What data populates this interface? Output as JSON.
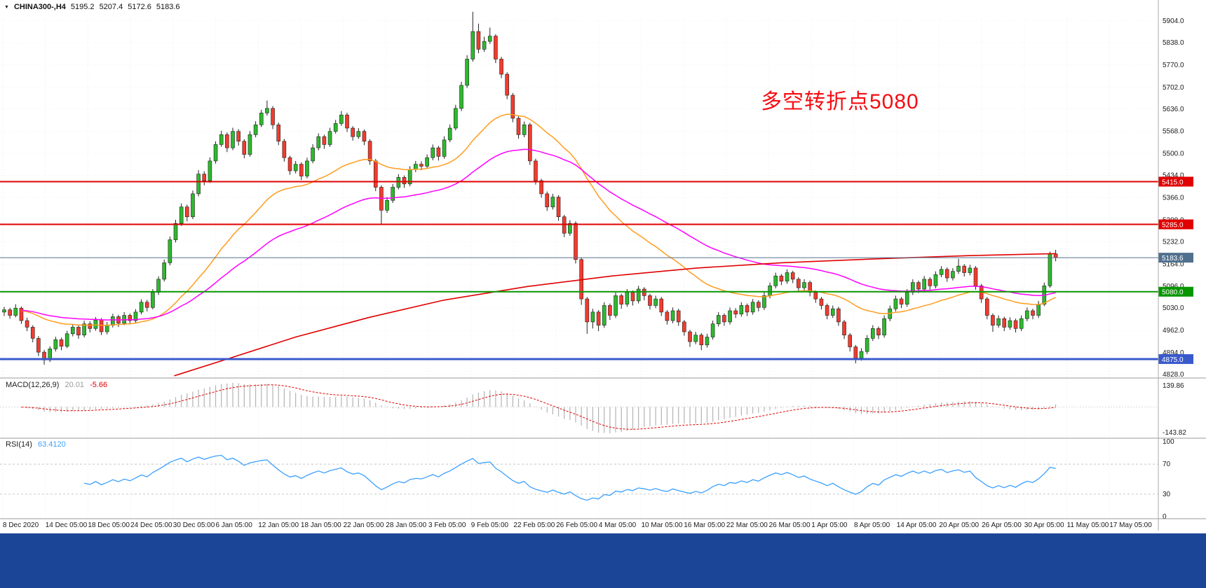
{
  "symbol_bar": {
    "marker": "▼",
    "symbol": "CHINA300-,H4",
    "open": "5195.2",
    "high": "5207.4",
    "low": "5172.6",
    "close": "5183.6"
  },
  "annotation": {
    "text": "多空转折点5080",
    "color": "#f50d12"
  },
  "indicators": {
    "macd": {
      "title": "MACD(12,26,9)",
      "main_value": "20.01",
      "signal_value": "-5.66",
      "axis_top": "139.86",
      "axis_bottom": "-143.82",
      "histogram_color": "#b3b3b3",
      "signal_color": "#e00000",
      "main_value_color": "#999999"
    },
    "rsi": {
      "title": "RSI(14)",
      "value": "63.4120",
      "line_color": "#3aa0ff",
      "guide_levels": [
        70,
        30
      ],
      "axis_labels": [
        100,
        70,
        30,
        0
      ]
    }
  },
  "taskbar": {
    "color": "#1b4596"
  },
  "chart_data": {
    "type": "candlestick",
    "symbol": "CHINA300-",
    "timeframe": "H4",
    "title": "CHINA300- H4 candlestick chart with MACD(12,26,9) and RSI(14)",
    "y_range": [
      4828,
      5904
    ],
    "y_ticks": [
      5904,
      5838,
      5770,
      5702,
      5636,
      5568,
      5500,
      5434,
      5366,
      5298,
      5232,
      5164,
      5096,
      5030,
      4962,
      4894,
      4828
    ],
    "time_labels": [
      "8 Dec 2020",
      "14 Dec 05:00",
      "18 Dec 05:00",
      "24 Dec 05:00",
      "30 Dec 05:00",
      "6 Jan 05:00",
      "12 Jan 05:00",
      "18 Jan 05:00",
      "22 Jan 05:00",
      "28 Jan 05:00",
      "3 Feb 05:00",
      "9 Feb 05:00",
      "22 Feb 05:00",
      "26 Feb 05:00",
      "4 Mar 05:00",
      "10 Mar 05:00",
      "16 Mar 05:00",
      "22 Mar 05:00",
      "26 Mar 05:00",
      "1 Apr 05:00",
      "8 Apr 05:00",
      "14 Apr 05:00",
      "20 Apr 05:00",
      "26 Apr 05:00",
      "30 Apr 05:00",
      "11 May 05:00",
      "17 May 05:00"
    ],
    "colors": {
      "up": "#2db92d",
      "down": "#f23b2e",
      "outline": "#222222"
    },
    "levels": [
      {
        "name": "resistance-line-5415",
        "price": 5415.0,
        "label": "5415.0",
        "color": "#e00000",
        "width": 2
      },
      {
        "name": "resistance-line-5285",
        "price": 5285.0,
        "label": "5285.0",
        "color": "#e00000",
        "width": 2
      },
      {
        "name": "pivot-line-5080",
        "price": 5080.0,
        "label": "5080.0",
        "color": "#089600",
        "width": 2
      },
      {
        "name": "support-line-4875",
        "price": 4875.0,
        "label": "4875.0",
        "color": "#3a5acc",
        "width": 3
      },
      {
        "name": "current-price-line",
        "price": 5183.6,
        "label": "5183.6",
        "color": "#50708e",
        "width": 1
      }
    ],
    "moving_averages": {
      "fast": {
        "type": "ema",
        "period": 30,
        "color": "#ff9c1e"
      },
      "mid": {
        "type": "ema",
        "period": 60,
        "color": "#ff00ff"
      },
      "slow": {
        "type": "polyline",
        "color": "#e00000",
        "points": [
          [
            0.165,
            4824
          ],
          [
            0.22,
            4880
          ],
          [
            0.28,
            4942
          ],
          [
            0.35,
            5002
          ],
          [
            0.42,
            5054
          ],
          [
            0.5,
            5096
          ],
          [
            0.58,
            5128
          ],
          [
            0.66,
            5152
          ],
          [
            0.74,
            5168
          ],
          [
            0.83,
            5180
          ],
          [
            0.92,
            5190
          ],
          [
            1.0,
            5196
          ]
        ]
      }
    },
    "macd_params": [
      12,
      26,
      9
    ],
    "rsi_period": 14,
    "ohlc": [
      [
        5018,
        5034,
        5006,
        5025
      ],
      [
        5025,
        5031,
        4998,
        5008
      ],
      [
        5008,
        5042,
        5002,
        5030
      ],
      [
        5030,
        5035,
        4982,
        4992
      ],
      [
        4992,
        5001,
        4960,
        4972
      ],
      [
        4972,
        4978,
        4926,
        4938
      ],
      [
        4938,
        4945,
        4884,
        4896
      ],
      [
        4896,
        4903,
        4858,
        4872
      ],
      [
        4872,
        4914,
        4866,
        4906
      ],
      [
        4906,
        4943,
        4898,
        4934
      ],
      [
        4934,
        4940,
        4902,
        4914
      ],
      [
        4914,
        4961,
        4908,
        4952
      ],
      [
        4952,
        4981,
        4944,
        4972
      ],
      [
        4972,
        4979,
        4937,
        4948
      ],
      [
        4948,
        4992,
        4941,
        4982
      ],
      [
        4982,
        4990,
        4956,
        4968
      ],
      [
        4968,
        5003,
        4961,
        4994
      ],
      [
        4994,
        5000,
        4948,
        4958
      ],
      [
        4958,
        4988,
        4950,
        4978
      ],
      [
        4978,
        5013,
        4971,
        5004
      ],
      [
        5004,
        5010,
        4973,
        4984
      ],
      [
        4984,
        5018,
        4978,
        5008
      ],
      [
        5008,
        5014,
        4981,
        4992
      ],
      [
        4992,
        5027,
        4986,
        5018
      ],
      [
        5018,
        5057,
        5011,
        5048
      ],
      [
        5048,
        5055,
        5020,
        5032
      ],
      [
        5032,
        5088,
        5026,
        5078
      ],
      [
        5078,
        5127,
        5070,
        5118
      ],
      [
        5118,
        5178,
        5111,
        5168
      ],
      [
        5168,
        5248,
        5160,
        5238
      ],
      [
        5238,
        5299,
        5230,
        5288
      ],
      [
        5288,
        5349,
        5280,
        5338
      ],
      [
        5338,
        5345,
        5294,
        5308
      ],
      [
        5308,
        5388,
        5301,
        5378
      ],
      [
        5378,
        5450,
        5370,
        5438
      ],
      [
        5438,
        5447,
        5404,
        5418
      ],
      [
        5418,
        5489,
        5411,
        5478
      ],
      [
        5478,
        5538,
        5470,
        5528
      ],
      [
        5528,
        5570,
        5521,
        5558
      ],
      [
        5558,
        5565,
        5505,
        5518
      ],
      [
        5518,
        5579,
        5511,
        5568
      ],
      [
        5568,
        5575,
        5525,
        5538
      ],
      [
        5538,
        5544,
        5486,
        5498
      ],
      [
        5498,
        5569,
        5491,
        5558
      ],
      [
        5558,
        5599,
        5550,
        5588
      ],
      [
        5588,
        5634,
        5581,
        5624
      ],
      [
        5624,
        5662,
        5616,
        5638
      ],
      [
        5638,
        5645,
        5575,
        5588
      ],
      [
        5588,
        5595,
        5526,
        5538
      ],
      [
        5538,
        5545,
        5476,
        5488
      ],
      [
        5488,
        5494,
        5436,
        5448
      ],
      [
        5448,
        5478,
        5440,
        5468
      ],
      [
        5468,
        5474,
        5420,
        5432
      ],
      [
        5432,
        5488,
        5425,
        5478
      ],
      [
        5478,
        5529,
        5471,
        5518
      ],
      [
        5518,
        5562,
        5510,
        5552
      ],
      [
        5552,
        5558,
        5515,
        5528
      ],
      [
        5528,
        5579,
        5521,
        5568
      ],
      [
        5568,
        5603,
        5561,
        5592
      ],
      [
        5592,
        5630,
        5585,
        5618
      ],
      [
        5618,
        5625,
        5566,
        5578
      ],
      [
        5578,
        5584,
        5540,
        5552
      ],
      [
        5552,
        5578,
        5545,
        5568
      ],
      [
        5568,
        5574,
        5526,
        5538
      ],
      [
        5538,
        5544,
        5466,
        5478
      ],
      [
        5478,
        5484,
        5386,
        5398
      ],
      [
        5398,
        5404,
        5286,
        5328
      ],
      [
        5328,
        5368,
        5320,
        5358
      ],
      [
        5358,
        5408,
        5350,
        5398
      ],
      [
        5398,
        5438,
        5391,
        5428
      ],
      [
        5428,
        5434,
        5396,
        5408
      ],
      [
        5408,
        5462,
        5401,
        5452
      ],
      [
        5452,
        5478,
        5444,
        5468
      ],
      [
        5468,
        5477,
        5450,
        5462
      ],
      [
        5462,
        5498,
        5455,
        5488
      ],
      [
        5488,
        5528,
        5480,
        5518
      ],
      [
        5518,
        5524,
        5479,
        5492
      ],
      [
        5492,
        5553,
        5485,
        5542
      ],
      [
        5542,
        5589,
        5535,
        5578
      ],
      [
        5578,
        5649,
        5571,
        5638
      ],
      [
        5638,
        5719,
        5630,
        5708
      ],
      [
        5708,
        5800,
        5700,
        5788
      ],
      [
        5788,
        5932,
        5780,
        5872
      ],
      [
        5872,
        5896,
        5806,
        5818
      ],
      [
        5818,
        5856,
        5810,
        5842
      ],
      [
        5842,
        5884,
        5834,
        5858
      ],
      [
        5858,
        5864,
        5776,
        5788
      ],
      [
        5788,
        5795,
        5730,
        5742
      ],
      [
        5742,
        5748,
        5666,
        5678
      ],
      [
        5678,
        5685,
        5596,
        5608
      ],
      [
        5608,
        5615,
        5546,
        5558
      ],
      [
        5558,
        5598,
        5550,
        5588
      ],
      [
        5588,
        5594,
        5466,
        5478
      ],
      [
        5478,
        5485,
        5406,
        5418
      ],
      [
        5418,
        5424,
        5366,
        5378
      ],
      [
        5378,
        5385,
        5326,
        5338
      ],
      [
        5338,
        5378,
        5330,
        5368
      ],
      [
        5368,
        5374,
        5296,
        5308
      ],
      [
        5308,
        5314,
        5246,
        5258
      ],
      [
        5258,
        5298,
        5250,
        5288
      ],
      [
        5288,
        5294,
        5166,
        5178
      ],
      [
        5178,
        5184,
        5040,
        5058
      ],
      [
        5058,
        5064,
        4952,
        4988
      ],
      [
        4988,
        5028,
        4968,
        5018
      ],
      [
        5018,
        5024,
        4960,
        4978
      ],
      [
        4978,
        5048,
        4970,
        5038
      ],
      [
        5038,
        5044,
        4994,
        5008
      ],
      [
        5008,
        5078,
        5000,
        5068
      ],
      [
        5068,
        5074,
        5028,
        5042
      ],
      [
        5042,
        5088,
        5034,
        5078
      ],
      [
        5078,
        5084,
        5038,
        5052
      ],
      [
        5052,
        5098,
        5044,
        5088
      ],
      [
        5088,
        5094,
        5054,
        5068
      ],
      [
        5068,
        5074,
        5026,
        5038
      ],
      [
        5038,
        5068,
        5030,
        5058
      ],
      [
        5058,
        5064,
        5006,
        5018
      ],
      [
        5018,
        5024,
        4980,
        4992
      ],
      [
        4992,
        5032,
        4984,
        5022
      ],
      [
        5022,
        5028,
        4976,
        4988
      ],
      [
        4988,
        4994,
        4946,
        4958
      ],
      [
        4958,
        4964,
        4912,
        4928
      ],
      [
        4928,
        4958,
        4920,
        4948
      ],
      [
        4948,
        4954,
        4902,
        4918
      ],
      [
        4918,
        4952,
        4910,
        4942
      ],
      [
        4942,
        4992,
        4934,
        4982
      ],
      [
        4982,
        5018,
        4974,
        5008
      ],
      [
        5008,
        5014,
        4976,
        4988
      ],
      [
        4988,
        5032,
        4980,
        5022
      ],
      [
        5022,
        5030,
        5000,
        5012
      ],
      [
        5012,
        5048,
        5004,
        5038
      ],
      [
        5038,
        5044,
        5006,
        5018
      ],
      [
        5018,
        5058,
        5010,
        5048
      ],
      [
        5048,
        5054,
        5020,
        5032
      ],
      [
        5032,
        5078,
        5024,
        5068
      ],
      [
        5068,
        5108,
        5060,
        5098
      ],
      [
        5098,
        5138,
        5090,
        5128
      ],
      [
        5128,
        5134,
        5100,
        5112
      ],
      [
        5112,
        5148,
        5104,
        5138
      ],
      [
        5138,
        5144,
        5106,
        5118
      ],
      [
        5118,
        5124,
        5080,
        5092
      ],
      [
        5092,
        5118,
        5084,
        5108
      ],
      [
        5108,
        5114,
        5066,
        5078
      ],
      [
        5078,
        5084,
        5046,
        5058
      ],
      [
        5058,
        5064,
        5026,
        5038
      ],
      [
        5038,
        5044,
        4996,
        5008
      ],
      [
        5008,
        5038,
        5000,
        5028
      ],
      [
        5028,
        5034,
        4976,
        4988
      ],
      [
        4988,
        4994,
        4936,
        4948
      ],
      [
        4948,
        4954,
        4898,
        4912
      ],
      [
        4912,
        4918,
        4862,
        4878
      ],
      [
        4878,
        4908,
        4870,
        4898
      ],
      [
        4898,
        4948,
        4890,
        4938
      ],
      [
        4938,
        4978,
        4930,
        4968
      ],
      [
        4968,
        4974,
        4936,
        4948
      ],
      [
        4948,
        5008,
        4940,
        4998
      ],
      [
        4998,
        5038,
        4990,
        5028
      ],
      [
        5028,
        5068,
        5020,
        5058
      ],
      [
        5058,
        5064,
        5030,
        5042
      ],
      [
        5042,
        5088,
        5034,
        5078
      ],
      [
        5078,
        5118,
        5070,
        5108
      ],
      [
        5108,
        5114,
        5076,
        5088
      ],
      [
        5088,
        5128,
        5080,
        5118
      ],
      [
        5118,
        5124,
        5086,
        5098
      ],
      [
        5098,
        5142,
        5090,
        5132
      ],
      [
        5132,
        5158,
        5124,
        5148
      ],
      [
        5148,
        5154,
        5110,
        5122
      ],
      [
        5122,
        5152,
        5114,
        5142
      ],
      [
        5142,
        5180,
        5134,
        5158
      ],
      [
        5158,
        5164,
        5126,
        5138
      ],
      [
        5138,
        5162,
        5130,
        5152
      ],
      [
        5152,
        5158,
        5086,
        5098
      ],
      [
        5098,
        5104,
        5046,
        5058
      ],
      [
        5058,
        5064,
        4996,
        5008
      ],
      [
        5008,
        5014,
        4958,
        4978
      ],
      [
        4978,
        5008,
        4970,
        4998
      ],
      [
        4998,
        5004,
        4960,
        4972
      ],
      [
        4972,
        5002,
        4964,
        4992
      ],
      [
        4992,
        4998,
        4956,
        4968
      ],
      [
        4968,
        5008,
        4960,
        4998
      ],
      [
        4998,
        5032,
        4990,
        5022
      ],
      [
        5022,
        5028,
        4996,
        5008
      ],
      [
        5008,
        5052,
        5000,
        5042
      ],
      [
        5042,
        5108,
        5036,
        5098
      ],
      [
        5098,
        5202,
        5092,
        5195
      ],
      [
        5195.2,
        5207.4,
        5172.6,
        5183.6
      ]
    ]
  }
}
